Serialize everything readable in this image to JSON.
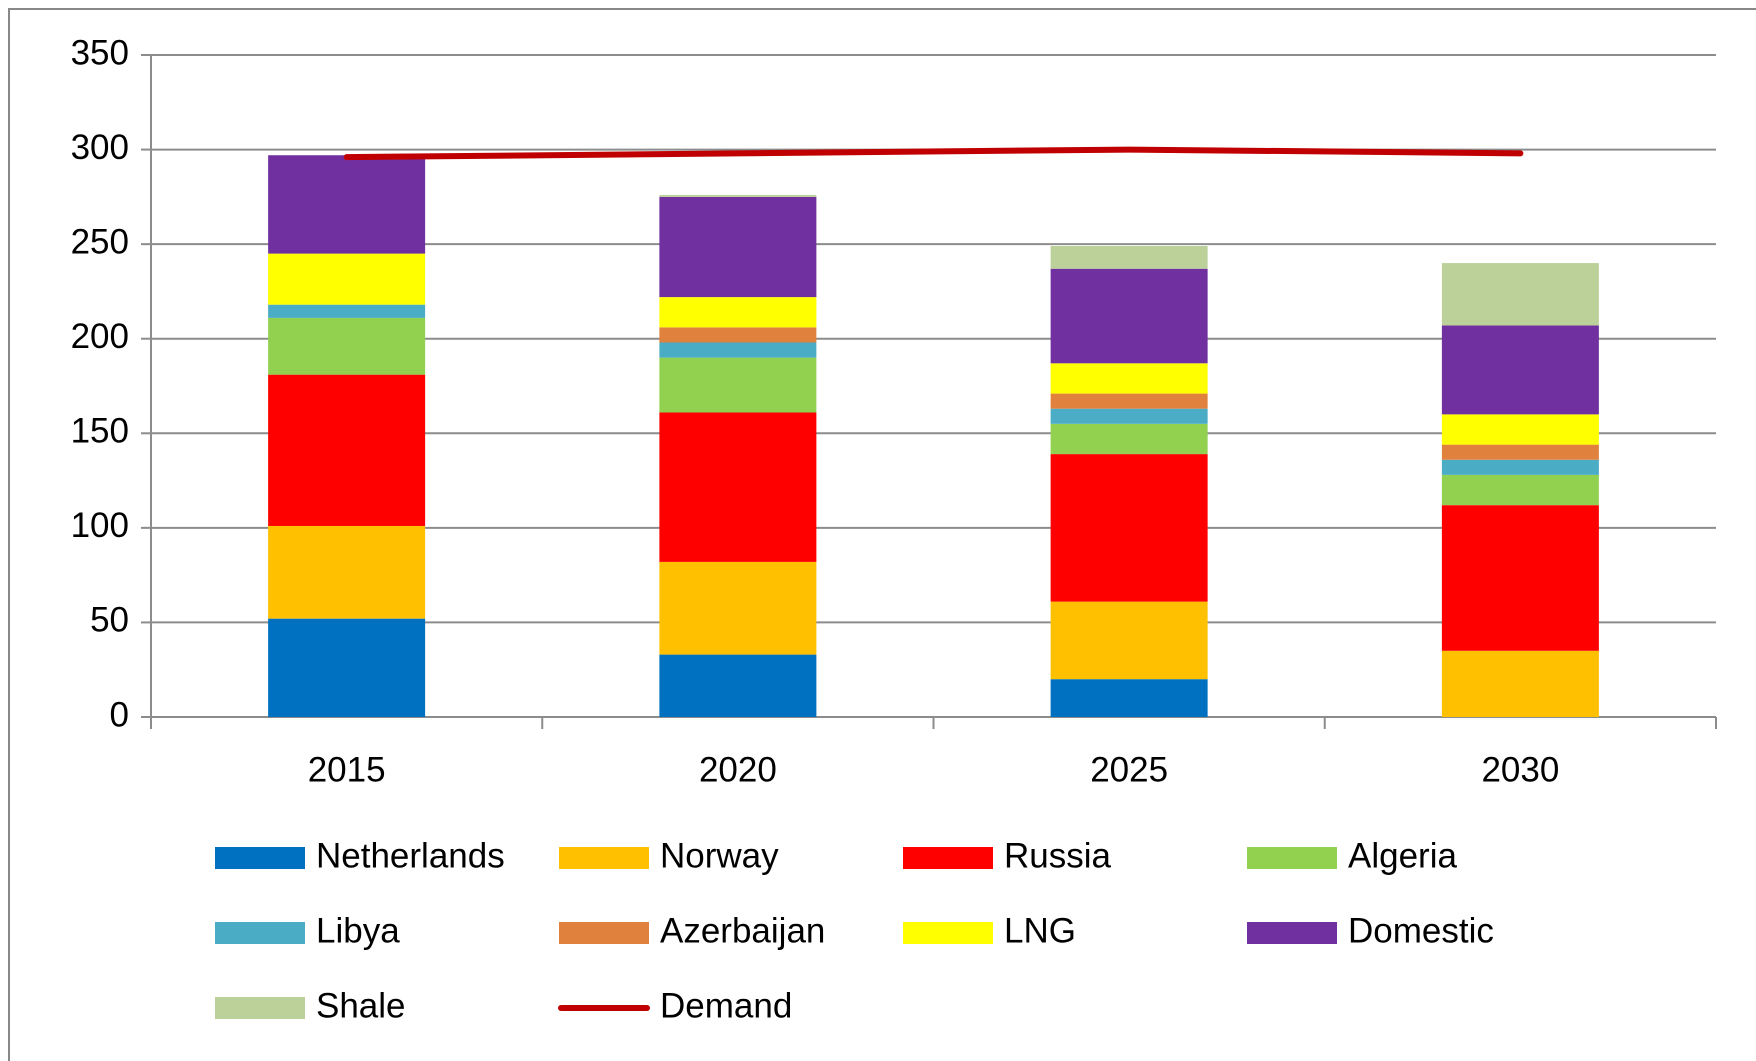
{
  "chart_data": {
    "type": "bar",
    "stacked": true,
    "categories": [
      "2015",
      "2020",
      "2025",
      "2030"
    ],
    "series": [
      {
        "name": "Netherlands",
        "color": "#0070c0",
        "values": [
          52,
          33,
          20,
          0
        ]
      },
      {
        "name": "Norway",
        "color": "#ffc000",
        "values": [
          49,
          49,
          41,
          35
        ]
      },
      {
        "name": "Russia",
        "color": "#ff0000",
        "values": [
          80,
          79,
          78,
          77
        ]
      },
      {
        "name": "Algeria",
        "color": "#92d050",
        "values": [
          30,
          29,
          16,
          16
        ]
      },
      {
        "name": "Libya",
        "color": "#4bacc6",
        "values": [
          7,
          8,
          8,
          8
        ]
      },
      {
        "name": "Azerbaijan",
        "color": "#e0823d",
        "values": [
          0,
          8,
          8,
          8
        ]
      },
      {
        "name": "LNG",
        "color": "#ffff00",
        "values": [
          27,
          16,
          16,
          16
        ]
      },
      {
        "name": "Domestic",
        "color": "#7030a0",
        "values": [
          52,
          53,
          50,
          47
        ]
      },
      {
        "name": "Shale",
        "color": "#bcd19a",
        "values": [
          0,
          1,
          12,
          33
        ]
      },
      {
        "name": "Demand",
        "color": "#c00000",
        "type": "line",
        "values": [
          296,
          298,
          300,
          298
        ]
      }
    ],
    "ylim": [
      0,
      350
    ],
    "yticks": [
      0,
      50,
      100,
      150,
      200,
      250,
      300,
      350
    ],
    "grid": true,
    "legend": "bottom"
  }
}
